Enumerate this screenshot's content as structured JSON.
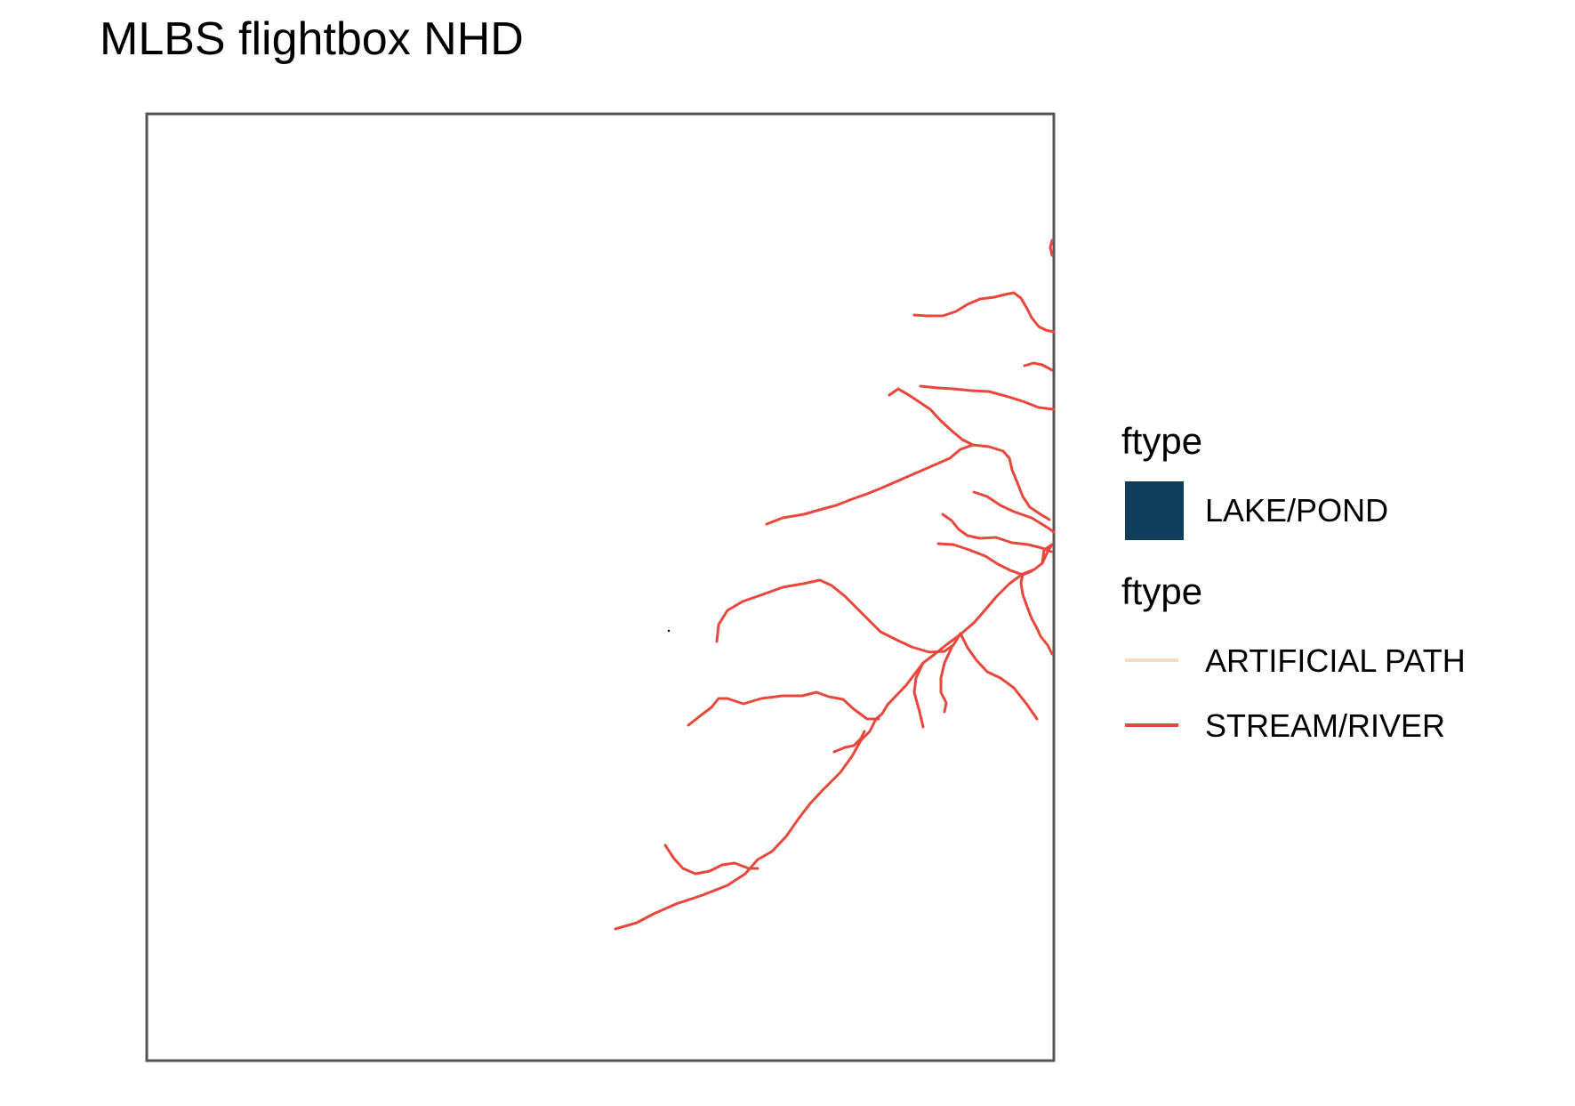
{
  "title": "MLBS flightbox NHD",
  "colors": {
    "background": "#ffffff",
    "frame": "#555555",
    "lake_pond": "#0f3d5c",
    "artificial_path": "#f6dcc4",
    "stream_river": "#e8473c"
  },
  "legend": {
    "area_group": {
      "title": "ftype",
      "items": [
        {
          "label": "LAKE/POND",
          "color": "#0f3d5c",
          "symbol": "filled-square"
        }
      ]
    },
    "line_group": {
      "title": "ftype",
      "items": [
        {
          "label": "ARTIFICIAL PATH",
          "color": "#f6dcc4",
          "symbol": "line"
        },
        {
          "label": "STREAM/RIVER",
          "color": "#e8473c",
          "symbol": "line"
        }
      ]
    }
  }
}
